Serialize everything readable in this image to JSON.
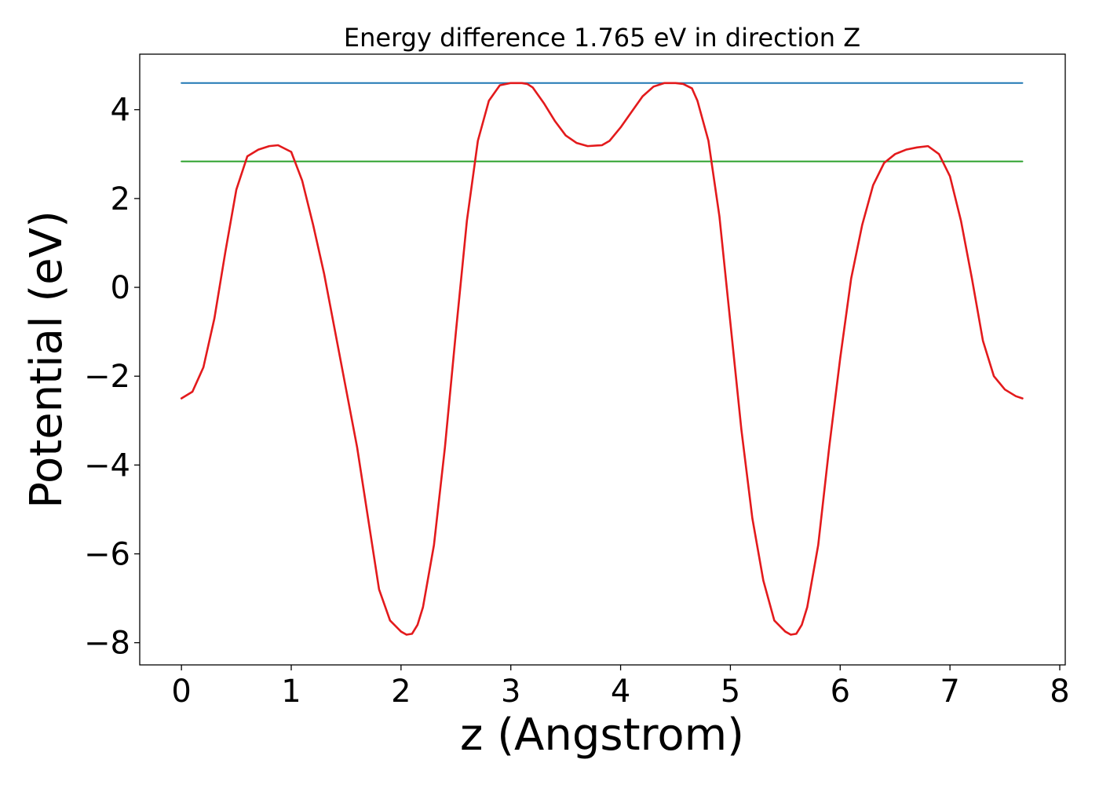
{
  "chart_data": {
    "type": "line",
    "title": "Energy difference 1.765 eV in direction Z",
    "xlabel": "z (Angstrom)",
    "ylabel": "Potential (eV)",
    "xlim": [
      -0.38,
      8.05
    ],
    "ylim": [
      -8.5,
      5.25
    ],
    "x_ticks": [
      0,
      1,
      2,
      3,
      4,
      5,
      6,
      7,
      8
    ],
    "x_tick_labels": [
      "0",
      "1",
      "2",
      "3",
      "4",
      "5",
      "6",
      "7",
      "8"
    ],
    "y_ticks": [
      -8,
      -6,
      -4,
      -2,
      0,
      2,
      4
    ],
    "y_tick_labels": [
      "−8",
      "−6",
      "−4",
      "−2",
      "0",
      "2",
      "4"
    ],
    "grid": false,
    "series": [
      {
        "color": "#1f77b4",
        "style": "horizontal-line",
        "x": [
          0,
          7.66
        ],
        "y": [
          4.6,
          4.6
        ]
      },
      {
        "color": "#2ca02c",
        "style": "horizontal-line",
        "x": [
          0,
          7.66
        ],
        "y": [
          2.835,
          2.835
        ]
      },
      {
        "color": "#e31a1c",
        "style": "line",
        "x": [
          0,
          0.1,
          0.2,
          0.3,
          0.4,
          0.5,
          0.6,
          0.7,
          0.8,
          0.88,
          1.0,
          1.1,
          1.2,
          1.3,
          1.4,
          1.5,
          1.6,
          1.7,
          1.8,
          1.9,
          2.0,
          2.05,
          2.1,
          2.15,
          2.2,
          2.3,
          2.4,
          2.5,
          2.6,
          2.7,
          2.8,
          2.9,
          3.0,
          3.1,
          3.15,
          3.2,
          3.3,
          3.4,
          3.5,
          3.6,
          3.7,
          3.83,
          3.9,
          4.0,
          4.1,
          4.2,
          4.3,
          4.4,
          4.5,
          4.57,
          4.65,
          4.7,
          4.8,
          4.9,
          5.0,
          5.1,
          5.2,
          5.3,
          5.4,
          5.5,
          5.55,
          5.6,
          5.65,
          5.7,
          5.8,
          5.9,
          6.0,
          6.1,
          6.2,
          6.3,
          6.4,
          6.5,
          6.6,
          6.7,
          6.8,
          6.9,
          7.0,
          7.1,
          7.2,
          7.3,
          7.4,
          7.5,
          7.6,
          7.66
        ],
        "y": [
          -2.5,
          -2.35,
          -1.8,
          -0.7,
          0.8,
          2.2,
          2.95,
          3.1,
          3.18,
          3.2,
          3.05,
          2.4,
          1.4,
          0.3,
          -1.0,
          -2.3,
          -3.6,
          -5.2,
          -6.8,
          -7.5,
          -7.75,
          -7.82,
          -7.8,
          -7.6,
          -7.2,
          -5.8,
          -3.6,
          -1.0,
          1.5,
          3.3,
          4.2,
          4.55,
          4.6,
          4.6,
          4.58,
          4.5,
          4.15,
          3.75,
          3.42,
          3.25,
          3.18,
          3.2,
          3.3,
          3.6,
          3.95,
          4.3,
          4.52,
          4.6,
          4.6,
          4.58,
          4.48,
          4.2,
          3.3,
          1.6,
          -0.8,
          -3.2,
          -5.2,
          -6.6,
          -7.5,
          -7.75,
          -7.82,
          -7.8,
          -7.6,
          -7.2,
          -5.8,
          -3.6,
          -1.6,
          0.2,
          1.4,
          2.3,
          2.8,
          3.0,
          3.1,
          3.15,
          3.18,
          3.0,
          2.5,
          1.5,
          0.2,
          -1.2,
          -2.0,
          -2.3,
          -2.45,
          -2.5
        ]
      }
    ]
  }
}
